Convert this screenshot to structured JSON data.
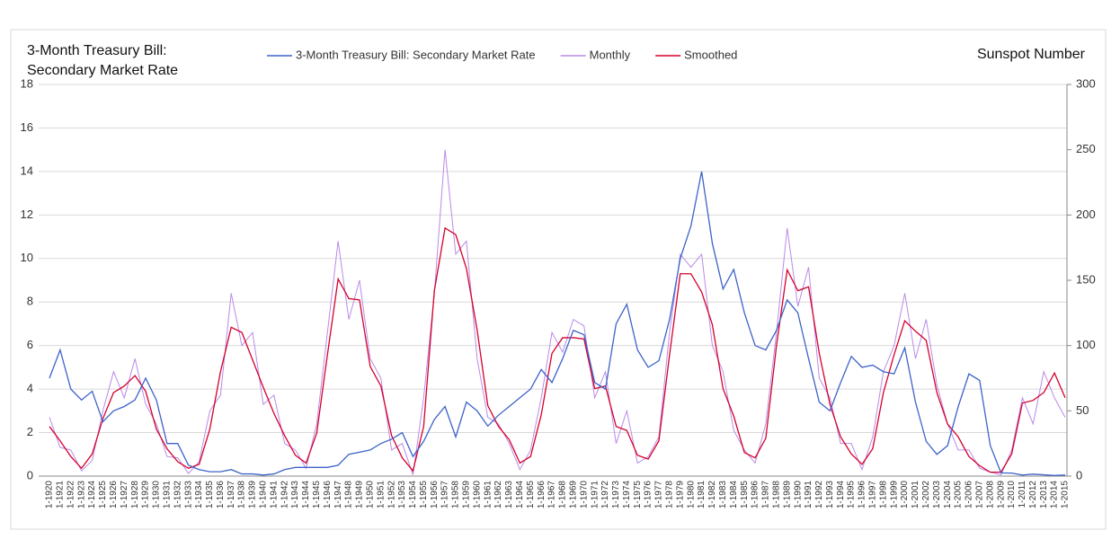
{
  "chart_data": {
    "type": "line",
    "y_label": "3-Month Treasury Bill: Secondary Market Rate",
    "y2_label": "Sunspot Number",
    "categories": [
      "1-1920",
      "1-1921",
      "1-1922",
      "1-1923",
      "1-1924",
      "1-1925",
      "1-1926",
      "1-1927",
      "1-1928",
      "1-1929",
      "1-1930",
      "1-1931",
      "1-1932",
      "1-1933",
      "1-1934",
      "1-1935",
      "1-1936",
      "1-1937",
      "1-1938",
      "1-1939",
      "1-1940",
      "1-1941",
      "1-1942",
      "1-1943",
      "1-1944",
      "1-1945",
      "1-1946",
      "1-1947",
      "1-1948",
      "1-1949",
      "1-1950",
      "1-1951",
      "1-1952",
      "1-1953",
      "1-1954",
      "1-1955",
      "1-1956",
      "1-1957",
      "1-1958",
      "1-1959",
      "1-1960",
      "1-1961",
      "1-1962",
      "1-1963",
      "1-1964",
      "1-1965",
      "1-1966",
      "1-1967",
      "1-1968",
      "1-1969",
      "1-1970",
      "1-1971",
      "1-1972",
      "1-1973",
      "1-1974",
      "1-1975",
      "1-1976",
      "1-1977",
      "1-1978",
      "1-1979",
      "1-1980",
      "1-1981",
      "1-1982",
      "1-1983",
      "1-1984",
      "1-1985",
      "1-1986",
      "1-1987",
      "1-1988",
      "1-1989",
      "1-1990",
      "1-1991",
      "1-1992",
      "1-1993",
      "1-1994",
      "1-1995",
      "1-1996",
      "1-1997",
      "1-1998",
      "1-1999",
      "1-2000",
      "1-2001",
      "1-2002",
      "1-2003",
      "1-2004",
      "1-2005",
      "1-2006",
      "1-2007",
      "1-2008",
      "1-2009",
      "1-2010",
      "1-2011",
      "1-2012",
      "1-2013",
      "1-2014",
      "1-2015"
    ],
    "series": [
      {
        "name": "3-Month Treasury Bill: Secondary Market Rate",
        "color": "#3d63c9",
        "axis": "y",
        "values": [
          4.5,
          5.8,
          4.0,
          3.5,
          3.9,
          2.5,
          3.0,
          3.2,
          3.5,
          4.5,
          3.5,
          1.5,
          1.5,
          0.5,
          0.3,
          0.2,
          0.2,
          0.3,
          0.1,
          0.1,
          0.05,
          0.1,
          0.3,
          0.4,
          0.4,
          0.4,
          0.4,
          0.5,
          1.0,
          1.1,
          1.2,
          1.5,
          1.7,
          2.0,
          0.9,
          1.6,
          2.6,
          3.2,
          1.8,
          3.4,
          3.0,
          2.3,
          2.8,
          3.2,
          3.6,
          4.0,
          4.9,
          4.3,
          5.4,
          6.7,
          6.5,
          4.3,
          4.0,
          7.0,
          7.9,
          5.8,
          5.0,
          5.3,
          7.2,
          10.0,
          11.5,
          14.0,
          10.7,
          8.6,
          9.5,
          7.5,
          6.0,
          5.8,
          6.7,
          8.1,
          7.5,
          5.4,
          3.4,
          3.0,
          4.3,
          5.5,
          5.0,
          5.1,
          4.8,
          4.7,
          5.9,
          3.4,
          1.6,
          1.0,
          1.4,
          3.2,
          4.7,
          4.4,
          1.4,
          0.15,
          0.14,
          0.05,
          0.09,
          0.06,
          0.03,
          0.05
        ]
      },
      {
        "name": "Monthly",
        "color": "#b98ae8",
        "axis": "y2",
        "values": [
          45,
          22,
          20,
          4,
          12,
          50,
          80,
          60,
          90,
          55,
          40,
          15,
          14,
          2,
          11,
          50,
          62,
          140,
          100,
          110,
          55,
          62,
          25,
          20,
          6,
          40,
          110,
          180,
          120,
          150,
          90,
          75,
          20,
          25,
          1,
          60,
          140,
          250,
          170,
          180,
          90,
          45,
          40,
          25,
          5,
          20,
          60,
          110,
          95,
          120,
          115,
          60,
          80,
          25,
          50,
          10,
          15,
          30,
          110,
          170,
          160,
          170,
          100,
          80,
          35,
          20,
          10,
          40,
          110,
          190,
          130,
          160,
          75,
          60,
          25,
          25,
          5,
          30,
          80,
          100,
          140,
          90,
          120,
          70,
          40,
          20,
          20,
          6,
          3,
          1,
          20,
          60,
          40,
          80,
          60,
          45
        ]
      },
      {
        "name": "Smoothed",
        "color": "#d5002b",
        "axis": "y2",
        "values": [
          38,
          27,
          15,
          6,
          17,
          44,
          64,
          69,
          77,
          65,
          36,
          21,
          11,
          6,
          9,
          36,
          80,
          114,
          110,
          89,
          68,
          48,
          31,
          16,
          10,
          33,
          93,
          151,
          136,
          135,
          84,
          69,
          31,
          14,
          4,
          38,
          142,
          190,
          185,
          159,
          112,
          54,
          38,
          28,
          10,
          15,
          47,
          94,
          106,
          106,
          105,
          67,
          69,
          38,
          35,
          16,
          13,
          27,
          93,
          155,
          155,
          141,
          116,
          67,
          46,
          18,
          14,
          29,
          100,
          158,
          142,
          145,
          94,
          55,
          30,
          17,
          9,
          21,
          64,
          93,
          119,
          111,
          104,
          64,
          40,
          30,
          15,
          8,
          3,
          3,
          17,
          56,
          58,
          64,
          79,
          60
        ]
      }
    ],
    "ylim": [
      0,
      18
    ],
    "yticks": [
      0,
      2,
      4,
      6,
      8,
      10,
      12,
      14,
      16,
      18
    ],
    "y2lim": [
      0,
      300
    ],
    "y2ticks": [
      0,
      50,
      100,
      150,
      200,
      250,
      300
    ],
    "grid": true
  }
}
